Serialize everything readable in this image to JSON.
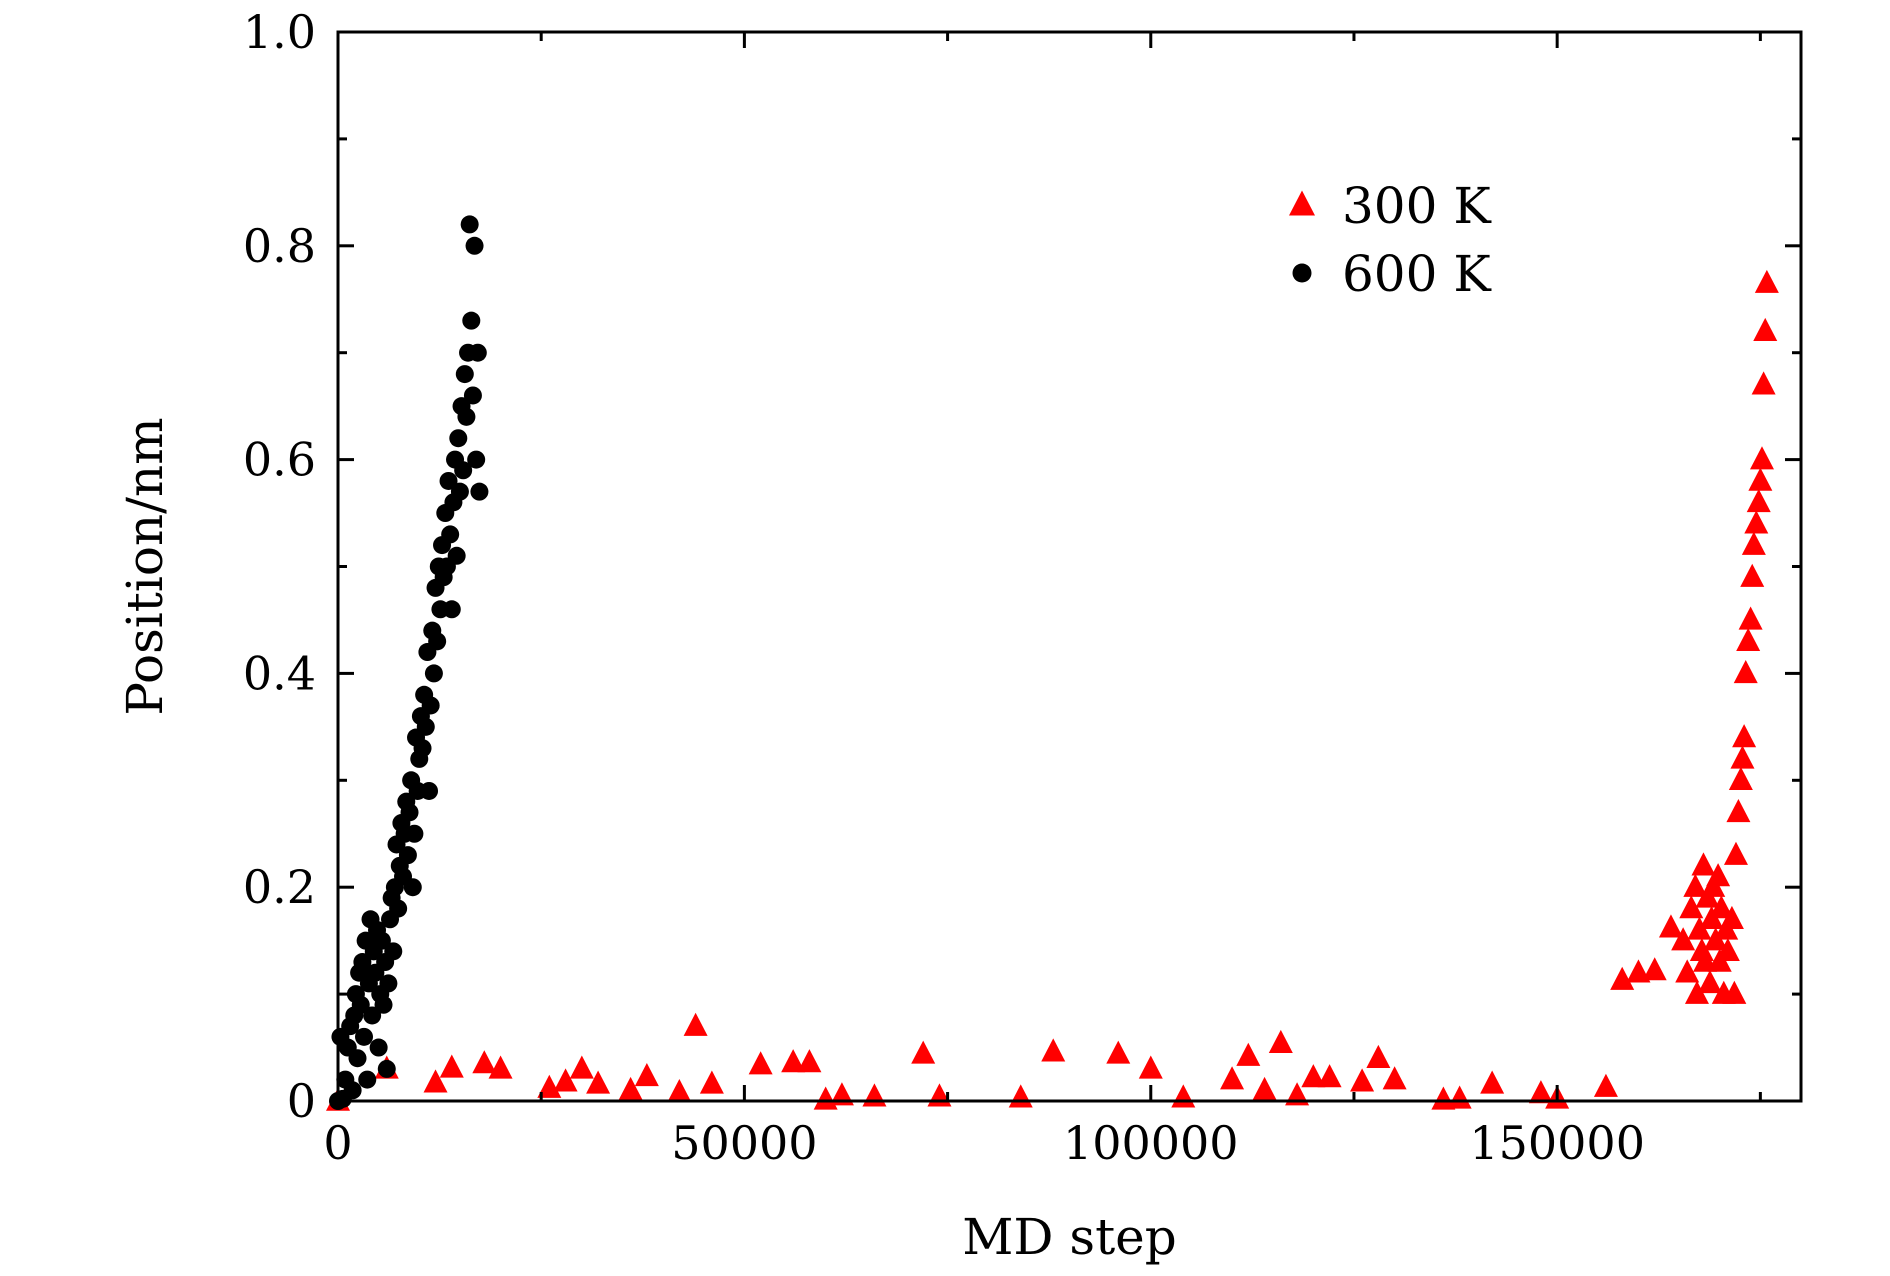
{
  "chart_data": {
    "type": "scatter",
    "title": "",
    "xlabel": "MD step",
    "ylabel": "Position/nm",
    "xlim": [
      0,
      180000
    ],
    "ylim": [
      0,
      1.0
    ],
    "xticks": [
      0,
      50000,
      100000,
      150000
    ],
    "xtick_labels": [
      "0",
      "50000",
      "100000",
      "150000"
    ],
    "xticks_minor": [
      25000,
      75000,
      125000,
      175000
    ],
    "yticks": [
      0,
      0.2,
      0.4,
      0.6,
      0.8,
      1.0
    ],
    "ytick_labels": [
      "0",
      "0.2",
      "0.4",
      "0.6",
      "0.8",
      "1.0"
    ],
    "yticks_minor": [
      0.1,
      0.3,
      0.5,
      0.7,
      0.9
    ],
    "grid": false,
    "legend_position": "top-right",
    "series": [
      {
        "name": "300 K",
        "marker": "triangle",
        "color": "#ff0000",
        "x": [
          0,
          6000,
          12000,
          14000,
          18000,
          20000,
          26000,
          28000,
          30000,
          32000,
          36000,
          38000,
          42000,
          44000,
          46000,
          52000,
          56000,
          58000,
          60000,
          62000,
          66000,
          72000,
          74000,
          84000,
          88000,
          96000,
          100000,
          104000,
          110000,
          112000,
          114000,
          116000,
          118000,
          120000,
          122000,
          126000,
          128000,
          130000,
          136000,
          138000,
          142000,
          148000,
          150000,
          156000,
          158000,
          160000,
          162000,
          164000,
          165500,
          166000,
          166500,
          167000,
          167200,
          167500,
          167800,
          168000,
          168200,
          168500,
          168800,
          169000,
          169200,
          169500,
          169800,
          170000,
          170200,
          170500,
          170800,
          171000,
          171500,
          171800,
          172000,
          172300,
          172600,
          172800,
          173000,
          173200,
          173500,
          173800,
          174000,
          174200,
          174500,
          174800,
          175000,
          175200,
          175400,
          175600,
          175800
        ],
        "y": [
          0,
          0.03,
          0.017,
          0.031,
          0.035,
          0.03,
          0.012,
          0.018,
          0.03,
          0.016,
          0.01,
          0.023,
          0.008,
          0.07,
          0.016,
          0.034,
          0.036,
          0.036,
          0.001,
          0.005,
          0.004,
          0.044,
          0.004,
          0.003,
          0.046,
          0.044,
          0.03,
          0.003,
          0.02,
          0.042,
          0.01,
          0.054,
          0.005,
          0.022,
          0.022,
          0.018,
          0.04,
          0.02,
          0.001,
          0.002,
          0.016,
          0.007,
          0.002,
          0.013,
          0.113,
          0.12,
          0.122,
          0.162,
          0.15,
          0.12,
          0.18,
          0.2,
          0.1,
          0.16,
          0.14,
          0.22,
          0.13,
          0.19,
          0.11,
          0.17,
          0.2,
          0.15,
          0.21,
          0.13,
          0.18,
          0.1,
          0.16,
          0.14,
          0.17,
          0.1,
          0.23,
          0.27,
          0.3,
          0.32,
          0.34,
          0.4,
          0.43,
          0.45,
          0.49,
          0.52,
          0.54,
          0.56,
          0.58,
          0.6,
          0.67,
          0.72,
          0.765
        ]
      },
      {
        "name": "600 K",
        "marker": "circle",
        "color": "#000000",
        "x": [
          0,
          300,
          600,
          900,
          1200,
          1500,
          1800,
          2000,
          2200,
          2400,
          2600,
          2800,
          3000,
          3200,
          3400,
          3600,
          3800,
          4000,
          4200,
          4400,
          4600,
          4800,
          5000,
          5200,
          5400,
          5600,
          5800,
          6000,
          6200,
          6400,
          6600,
          6800,
          7000,
          7200,
          7400,
          7600,
          7800,
          8000,
          8200,
          8400,
          8600,
          8800,
          9000,
          9200,
          9400,
          9600,
          9800,
          10000,
          10200,
          10400,
          10600,
          10800,
          11000,
          11200,
          11400,
          11600,
          11800,
          12000,
          12200,
          12400,
          12600,
          12800,
          13000,
          13200,
          13400,
          13600,
          13800,
          14000,
          14200,
          14400,
          14600,
          14800,
          15000,
          15200,
          15400,
          15600,
          15800,
          16000,
          16200,
          16400,
          16600,
          16800,
          17000,
          17200,
          17400
        ],
        "y": [
          0,
          0.06,
          0.002,
          0.02,
          0.05,
          0.07,
          0.01,
          0.08,
          0.1,
          0.04,
          0.12,
          0.09,
          0.13,
          0.06,
          0.15,
          0.02,
          0.11,
          0.17,
          0.08,
          0.14,
          0.12,
          0.16,
          0.05,
          0.1,
          0.15,
          0.09,
          0.13,
          0.03,
          0.11,
          0.17,
          0.19,
          0.14,
          0.2,
          0.24,
          0.18,
          0.22,
          0.26,
          0.21,
          0.25,
          0.28,
          0.23,
          0.27,
          0.3,
          0.2,
          0.25,
          0.34,
          0.29,
          0.32,
          0.36,
          0.33,
          0.38,
          0.35,
          0.42,
          0.29,
          0.37,
          0.44,
          0.4,
          0.48,
          0.43,
          0.5,
          0.46,
          0.52,
          0.49,
          0.55,
          0.5,
          0.58,
          0.53,
          0.46,
          0.56,
          0.6,
          0.51,
          0.62,
          0.57,
          0.65,
          0.59,
          0.68,
          0.64,
          0.7,
          0.82,
          0.73,
          0.66,
          0.8,
          0.6,
          0.7,
          0.57
        ]
      }
    ]
  }
}
